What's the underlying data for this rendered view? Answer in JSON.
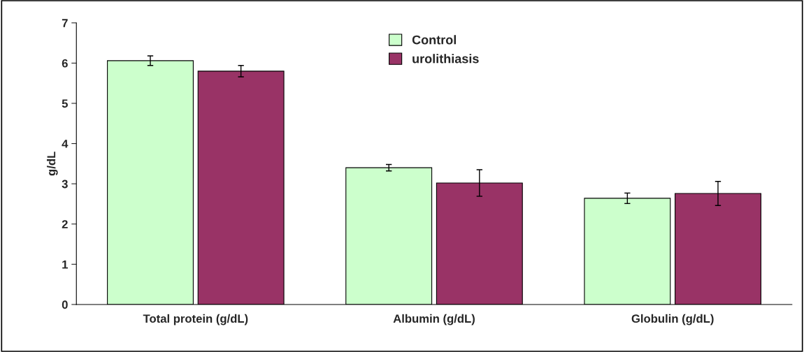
{
  "chart_data": {
    "type": "bar",
    "ylabel": "g/dL",
    "categories": [
      "Total protein (g/dL)",
      "Albumin (g/dL)",
      "Globulin (g/dL)"
    ],
    "series": [
      {
        "name": "Control",
        "color": "#ccffcc",
        "values": [
          6.06,
          3.4,
          2.64
        ],
        "errors": [
          0.12,
          0.08,
          0.13
        ]
      },
      {
        "name": "urolithiasis",
        "color": "#993366",
        "values": [
          5.8,
          3.02,
          2.76
        ],
        "errors": [
          0.14,
          0.33,
          0.3
        ]
      }
    ],
    "ylim": [
      0,
      7
    ],
    "yticks": [
      0,
      1,
      2,
      3,
      4,
      5,
      6,
      7
    ],
    "grid": false,
    "legend": "top"
  }
}
